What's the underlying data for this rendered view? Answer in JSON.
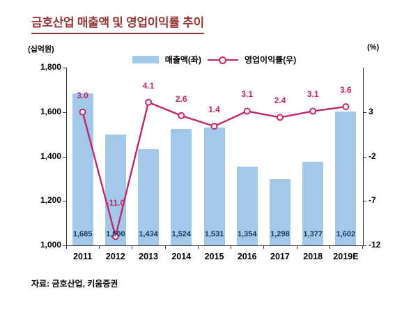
{
  "chart_data": {
    "type": "bar",
    "combo": "bar+line",
    "title": "금호산업 매출액 및 영업이익률 추이",
    "categories": [
      "2011",
      "2012",
      "2013",
      "2014",
      "2015",
      "2016",
      "2017",
      "2018",
      "2019E"
    ],
    "series": [
      {
        "name": "매출액(좌)",
        "type": "bar",
        "axis": "left",
        "values": [
          1685,
          1500,
          1434,
          1524,
          1531,
          1354,
          1298,
          1377,
          1602
        ]
      },
      {
        "name": "영업이익률(우)",
        "type": "line",
        "axis": "right",
        "values": [
          3.0,
          -11.0,
          4.1,
          2.6,
          1.4,
          3.1,
          2.4,
          3.1,
          3.6
        ]
      }
    ],
    "left_axis": {
      "unit": "(십억원)",
      "min": 1000,
      "max": 1800,
      "ticks": [
        1800,
        1600,
        1400,
        1200,
        1000
      ]
    },
    "right_axis": {
      "unit": "(%)",
      "min": -12,
      "max": 8,
      "ticks": [
        3,
        -2,
        -7,
        -12
      ]
    },
    "legend_position": "top",
    "grid": false,
    "colors": {
      "bar": "#A3C9EA",
      "line": "#C0276B",
      "bar_label": "#17375E",
      "title": "#963634",
      "axis": "#333333"
    }
  },
  "source": "자료: 금호산업, 키움증권"
}
